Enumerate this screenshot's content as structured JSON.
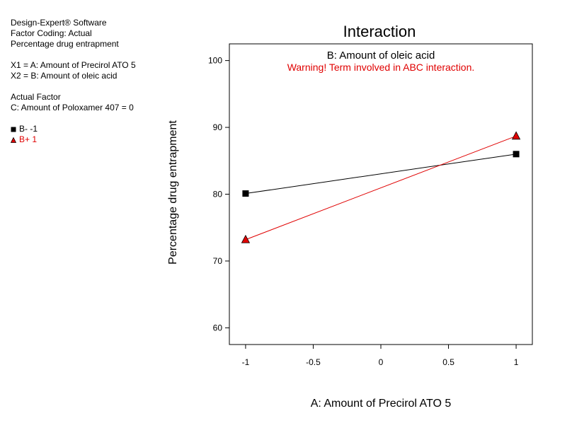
{
  "info": {
    "software": "Design-Expert® Software",
    "factor_coding": "Factor Coding: Actual",
    "response": "Percentage drug entrapment",
    "x1": "X1 = A: Amount of Precirol ATO 5",
    "x2": "X2 = B: Amount of oleic acid",
    "actual_factor_header": "Actual Factor",
    "actual_factor": "C: Amount of Poloxamer 407 = 0"
  },
  "colors": {
    "series1": "#000000",
    "series2": "#e00000",
    "warning": "#e00000"
  },
  "chart_data": {
    "type": "line",
    "title": "Interaction",
    "subtitle": "B: Amount of oleic acid",
    "warning": "Warning! Term involved in ABC interaction.",
    "xlabel": "A: Amount of Precirol ATO 5",
    "ylabel": "Percentage drug entrapment",
    "xlim": [
      -1.12,
      1.12
    ],
    "ylim": [
      57.5,
      102.5
    ],
    "xticks": [
      -1,
      -0.5,
      0,
      0.5,
      1
    ],
    "xtick_labels": [
      "-1",
      "-0.5",
      "0",
      "0.5",
      "1"
    ],
    "yticks": [
      60,
      70,
      80,
      90,
      100
    ],
    "ytick_labels": [
      "60",
      "70",
      "80",
      "90",
      "100"
    ],
    "series": [
      {
        "name": "B- -1",
        "marker": "square",
        "color": "#000000",
        "x": [
          -1,
          1
        ],
        "y": [
          80.1,
          86.0
        ]
      },
      {
        "name": "B+ 1",
        "marker": "triangle",
        "color": "#e00000",
        "x": [
          -1,
          1
        ],
        "y": [
          73.2,
          88.7
        ]
      }
    ]
  }
}
